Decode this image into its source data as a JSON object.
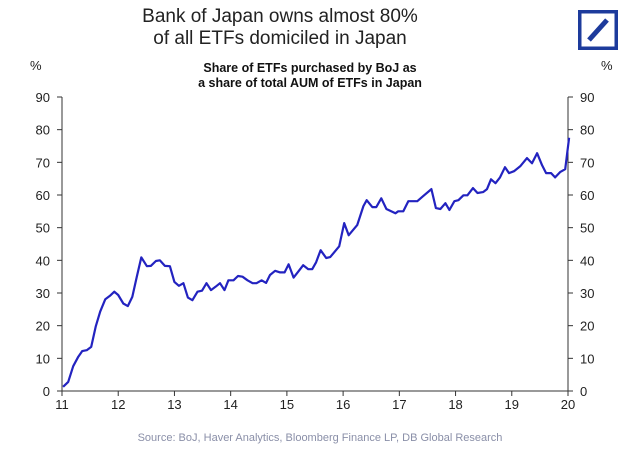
{
  "chart_data": {
    "type": "line",
    "title": "Bank of Japan owns almost 80%\nof all ETFs domiciled in Japan",
    "title_lines": [
      "Bank of Japan owns almost 80%",
      "of all ETFs domiciled in Japan"
    ],
    "subtitle_lines": [
      "Share of ETFs purchased by BoJ as",
      "a share of total AUM of ETFs in Japan"
    ],
    "ylabel_left": "%",
    "ylabel_right": "%",
    "ylim": [
      0,
      90
    ],
    "xlim": [
      11,
      20.3
    ],
    "yticks": [
      0,
      10,
      20,
      30,
      40,
      50,
      60,
      70,
      80,
      90
    ],
    "xticks": [
      11,
      12,
      13,
      14,
      15,
      16,
      17,
      18,
      19,
      20
    ],
    "grid": false,
    "source": "Source: BoJ, Haver Analytics, Bloomberg Finance LP, DB Global Research",
    "line_color": "#2323c0",
    "logo_color": "#1d3b9c",
    "x": [
      11.02,
      11.11,
      11.2,
      11.29,
      11.36,
      11.44,
      11.52,
      11.6,
      11.68,
      11.77,
      11.85,
      11.93,
      12.0,
      12.09,
      12.17,
      12.25,
      12.33,
      12.41,
      12.51,
      12.58,
      12.67,
      12.74,
      12.83,
      12.92,
      13.0,
      13.08,
      13.16,
      13.24,
      13.32,
      13.41,
      13.49,
      13.57,
      13.65,
      13.73,
      13.81,
      13.89,
      13.96,
      14.05,
      14.13,
      14.21,
      14.3,
      14.39,
      14.46,
      14.55,
      14.63,
      14.7,
      14.79,
      14.88,
      14.96,
      15.03,
      15.12,
      15.2,
      15.29,
      15.38,
      15.45,
      15.52,
      15.6,
      15.7,
      15.77,
      15.93,
      16.02,
      16.1,
      16.25,
      16.36,
      16.42,
      16.52,
      16.59,
      16.68,
      16.77,
      16.93,
      16.98,
      17.07,
      17.16,
      17.32,
      17.42,
      17.57,
      17.65,
      17.73,
      17.82,
      17.89,
      17.98,
      18.05,
      18.14,
      18.21,
      18.31,
      18.39,
      18.49,
      18.56,
      18.63,
      18.71,
      18.79,
      18.88,
      18.95,
      19.04,
      19.15,
      19.27,
      19.36,
      19.45,
      19.54,
      19.61,
      19.7,
      19.77,
      19.86,
      19.95,
      20.02
    ],
    "y": [
      1.3,
      2.8,
      7.6,
      10.5,
      12.2,
      12.5,
      13.5,
      19.7,
      24.3,
      28.1,
      29.1,
      30.4,
      29.4,
      26.8,
      26.0,
      28.8,
      35.0,
      40.9,
      38.2,
      38.3,
      39.8,
      40.0,
      38.3,
      38.2,
      33.4,
      32.2,
      33.0,
      28.6,
      27.8,
      30.4,
      30.7,
      33.0,
      30.9,
      31.9,
      33.0,
      30.9,
      33.9,
      33.9,
      35.2,
      35.0,
      33.9,
      33.0,
      33.0,
      33.9,
      33.1,
      35.5,
      36.8,
      36.3,
      36.3,
      38.8,
      34.7,
      36.5,
      38.5,
      37.3,
      37.3,
      39.4,
      43.1,
      40.7,
      41.0,
      44.3,
      51.4,
      47.7,
      50.8,
      56.6,
      58.4,
      56.3,
      56.3,
      59.0,
      55.7,
      54.4,
      55.0,
      55.0,
      58.1,
      58.1,
      59.6,
      61.8,
      56.0,
      55.7,
      57.5,
      55.4,
      58.1,
      58.4,
      59.9,
      59.9,
      62.1,
      60.6,
      60.9,
      61.8,
      64.8,
      63.6,
      65.4,
      68.5,
      66.7,
      67.3,
      68.8,
      71.3,
      69.7,
      72.8,
      69.1,
      66.7,
      66.7,
      65.4,
      67.0,
      67.9,
      77.5
    ]
  }
}
